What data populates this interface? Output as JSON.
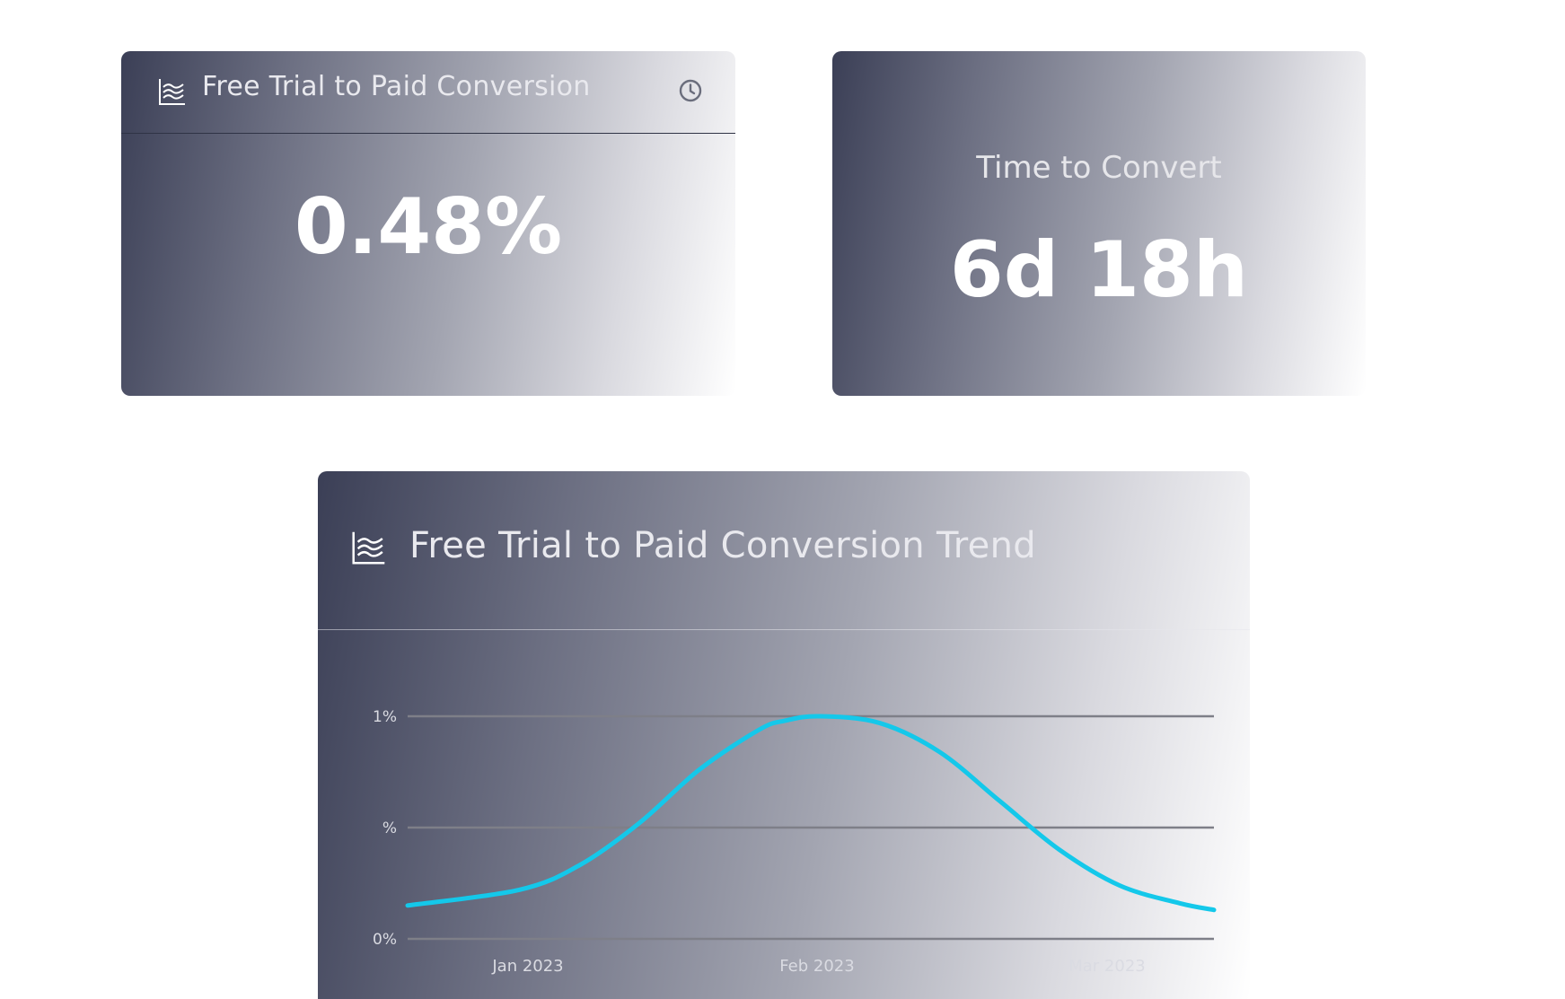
{
  "cards": {
    "conversion": {
      "title": "Free Trial to Paid Conversion",
      "value": "0.48%"
    },
    "time_to_convert": {
      "label": "Time to Convert",
      "value": "6d 18h"
    },
    "trend": {
      "title": "Free Trial to Paid Conversion Trend"
    }
  },
  "chart_data": {
    "type": "line",
    "title": "Free Trial to Paid Conversion Trend",
    "xlabel": "",
    "ylabel": "",
    "x_tick_labels": [
      "Jan 2023",
      "Feb 2023",
      "Mar 2023"
    ],
    "y_tick_labels": [
      "0%",
      "%",
      "1%"
    ],
    "ylim": [
      0,
      1
    ],
    "grid": true,
    "series": [
      {
        "color": "#14c8ea",
        "x": [
          "2022-12-19",
          "2023-01-01",
          "2023-01-08",
          "2023-01-15",
          "2023-01-22",
          "2023-01-29",
          "2023-02-01",
          "2023-02-05",
          "2023-02-12",
          "2023-02-19",
          "2023-02-26",
          "2023-03-05",
          "2023-03-12",
          "2023-03-19",
          "2023-03-23"
        ],
        "values": [
          0.15,
          0.22,
          0.33,
          0.52,
          0.76,
          0.94,
          0.98,
          1.0,
          0.97,
          0.84,
          0.62,
          0.4,
          0.24,
          0.16,
          0.13
        ]
      }
    ],
    "colors": {
      "line": "#14c8ea",
      "grid": "#7e7f88",
      "tick_label": "#dadbe2"
    }
  }
}
